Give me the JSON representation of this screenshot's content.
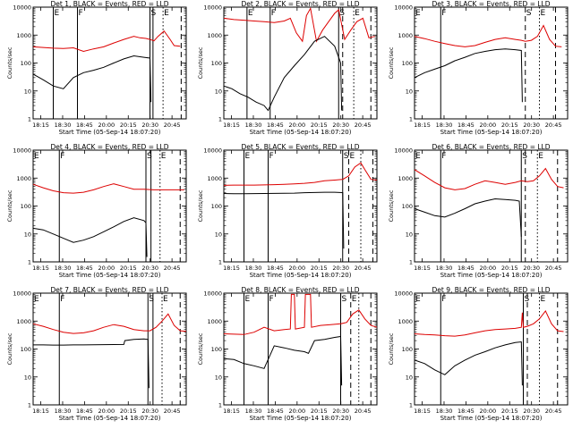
{
  "figure": {
    "xlabel": "Start Time (05-Sep-14 18:07:20)",
    "ylabel": "Counts/sec",
    "xticks": [
      "18:15",
      "18:30",
      "18:45",
      "20:00",
      "20:15",
      "20:30",
      "20:45"
    ],
    "yticks": [
      "1",
      "10",
      "100",
      "1000",
      "10000"
    ],
    "series_colors": {
      "events": "#000000",
      "lld": "#dd0000"
    }
  },
  "chart_data": [
    {
      "type": "line",
      "title": "Det 1, BLACK = Events, RED = LLD",
      "ylim": [
        1,
        10000
      ],
      "yscale": "log",
      "markers": [
        {
          "x": 1.0,
          "label": "E",
          "style": "solid"
        },
        {
          "x": 2.2,
          "label": "F",
          "style": "solid"
        },
        {
          "x": 5.8,
          "label": "S",
          "style": "solid"
        },
        {
          "x": 5.95,
          "label": "",
          "style": "solid"
        },
        {
          "x": 6.45,
          "label": "E",
          "style": "dotted"
        },
        {
          "x": 7.35,
          "label": "",
          "style": "dashed"
        }
      ],
      "series": [
        {
          "key": "lld",
          "x": [
            0,
            0.5,
            1,
            1.5,
            2,
            2.5,
            3,
            3.5,
            4,
            4.5,
            5,
            5.3,
            5.6,
            5.8,
            6.0,
            6.2,
            6.5,
            6.8,
            7.0,
            7.3
          ],
          "values": [
            380,
            360,
            340,
            330,
            350,
            260,
            320,
            380,
            520,
            700,
            900,
            800,
            760,
            700,
            620,
            900,
            1400,
            700,
            420,
            400
          ]
        },
        {
          "key": "events",
          "x": [
            0,
            0.5,
            1,
            1.5,
            2,
            2.5,
            3,
            3.5,
            4,
            4.5,
            5,
            5.5,
            5.8,
            5.85
          ],
          "values": [
            40,
            25,
            15,
            12,
            30,
            45,
            55,
            70,
            100,
            140,
            180,
            160,
            150,
            4
          ]
        }
      ]
    },
    {
      "type": "line",
      "title": "Det 2, BLACK = Events, RED = LLD",
      "ylim": [
        1,
        10000
      ],
      "yscale": "log",
      "markers": [
        {
          "x": 1.15,
          "label": "E",
          "style": "solid"
        },
        {
          "x": 2.3,
          "label": "F",
          "style": "solid"
        },
        {
          "x": 5.7,
          "label": "S",
          "style": "solid"
        },
        {
          "x": 5.9,
          "label": "",
          "style": "dashed"
        },
        {
          "x": 6.45,
          "label": "E",
          "style": "dotted"
        },
        {
          "x": 7.3,
          "label": "",
          "style": "dashed"
        }
      ],
      "series": [
        {
          "key": "lld",
          "x": [
            0,
            0.5,
            1,
            1.5,
            2,
            2.5,
            3,
            3.3,
            3.6,
            3.9,
            4.1,
            4.3,
            4.6,
            4.9,
            5.2,
            5.5,
            5.7,
            6.0,
            6.3,
            6.6,
            6.9,
            7.2,
            7.5
          ],
          "values": [
            4000,
            3600,
            3400,
            3200,
            3000,
            2800,
            3200,
            4000,
            1200,
            600,
            5000,
            9000,
            600,
            1500,
            3000,
            6000,
            8000,
            700,
            1500,
            3000,
            4000,
            800,
            900
          ]
        },
        {
          "key": "events",
          "x": [
            0,
            0.4,
            0.8,
            1.2,
            1.6,
            2.0,
            2.2,
            2.5,
            3.0,
            3.5,
            4.0,
            4.5,
            5.0,
            5.5,
            5.8,
            5.85
          ],
          "values": [
            15,
            12,
            8,
            6,
            4,
            3,
            2,
            6,
            30,
            80,
            200,
            600,
            900,
            400,
            100,
            2
          ]
        }
      ]
    },
    {
      "type": "line",
      "title": "Det 3, BLACK = Events, RED = LLD",
      "ylim": [
        1,
        10000
      ],
      "yscale": "log",
      "markers": [
        {
          "x": 0.0,
          "label": "E",
          "style": "solid"
        },
        {
          "x": 1.3,
          "label": "F",
          "style": "solid"
        },
        {
          "x": 5.5,
          "label": "S",
          "style": "dashed"
        },
        {
          "x": 6.2,
          "label": "E",
          "style": "dotted"
        },
        {
          "x": 7.0,
          "label": "",
          "style": "dashed"
        }
      ],
      "series": [
        {
          "key": "lld",
          "x": [
            0,
            0.5,
            1,
            1.5,
            2,
            2.5,
            3,
            3.5,
            4,
            4.5,
            5,
            5.3,
            5.5,
            5.8,
            6.1,
            6.4,
            6.7,
            7.0,
            7.3
          ],
          "values": [
            900,
            750,
            600,
            500,
            420,
            380,
            420,
            550,
            700,
            800,
            700,
            650,
            600,
            650,
            900,
            2200,
            700,
            400,
            380
          ]
        },
        {
          "key": "events",
          "x": [
            0,
            0.5,
            1,
            1.5,
            2,
            2.5,
            3,
            3.5,
            4,
            4.5,
            5,
            5.3,
            5.35
          ],
          "values": [
            30,
            45,
            60,
            80,
            120,
            160,
            220,
            260,
            300,
            320,
            300,
            280,
            4
          ]
        }
      ]
    },
    {
      "type": "line",
      "title": "Det 4, BLACK = Events, RED = LLD",
      "ylim": [
        1,
        10000
      ],
      "yscale": "log",
      "markers": [
        {
          "x": 0.0,
          "label": "E",
          "style": "solid"
        },
        {
          "x": 1.3,
          "label": "F",
          "style": "solid"
        },
        {
          "x": 5.6,
          "label": "S",
          "style": "solid"
        },
        {
          "x": 5.85,
          "label": "",
          "style": "solid"
        },
        {
          "x": 6.3,
          "label": "E",
          "style": "dotted"
        },
        {
          "x": 7.3,
          "label": "",
          "style": "dashed"
        }
      ],
      "series": [
        {
          "key": "lld",
          "x": [
            0,
            0.5,
            1,
            1.5,
            2,
            2.5,
            3,
            3.5,
            4,
            4.5,
            5,
            5.5,
            6.0,
            6.5,
            7.0,
            7.5
          ],
          "values": [
            600,
            450,
            350,
            300,
            290,
            310,
            380,
            500,
            620,
            500,
            400,
            400,
            380,
            380,
            380,
            380
          ]
        },
        {
          "key": "events",
          "x": [
            0,
            0.5,
            1,
            1.5,
            2,
            2.5,
            3,
            3.5,
            4,
            4.5,
            5,
            5.5,
            5.6,
            5.65
          ],
          "values": [
            16,
            14,
            10,
            7,
            5,
            6,
            8,
            12,
            18,
            28,
            38,
            30,
            25,
            1.5
          ]
        }
      ]
    },
    {
      "type": "line",
      "title": "Det 5, BLACK = Events, RED = LLD",
      "ylim": [
        1,
        10000
      ],
      "yscale": "log",
      "markers": [
        {
          "x": 1.0,
          "label": "E",
          "style": "solid"
        },
        {
          "x": 2.2,
          "label": "F",
          "style": "solid"
        },
        {
          "x": 5.9,
          "label": "S",
          "style": "solid"
        },
        {
          "x": 6.2,
          "label": "E",
          "style": "dashed"
        },
        {
          "x": 6.8,
          "label": "",
          "style": "dotted"
        },
        {
          "x": 7.4,
          "label": "",
          "style": "dashed"
        }
      ],
      "series": [
        {
          "key": "lld",
          "x": [
            0,
            0.5,
            1,
            1.5,
            2,
            2.5,
            3,
            3.5,
            4,
            4.5,
            5,
            5.5,
            5.9,
            6.2,
            6.5,
            6.8,
            7.0,
            7.3,
            7.6
          ],
          "values": [
            550,
            560,
            560,
            560,
            570,
            580,
            600,
            620,
            650,
            700,
            800,
            850,
            900,
            1200,
            2500,
            3500,
            2000,
            900,
            850
          ]
        },
        {
          "key": "events",
          "x": [
            0,
            0.5,
            1,
            1.5,
            2,
            2.5,
            3,
            3.5,
            4,
            4.5,
            5,
            5.5,
            5.9,
            5.95
          ],
          "values": [
            280,
            275,
            275,
            278,
            280,
            282,
            285,
            290,
            300,
            305,
            310,
            310,
            300,
            3
          ]
        }
      ]
    },
    {
      "type": "line",
      "title": "Det 6, BLACK = Events, RED = LLD",
      "ylim": [
        1,
        10000
      ],
      "yscale": "log",
      "markers": [
        {
          "x": 0.0,
          "label": "E",
          "style": "solid"
        },
        {
          "x": 1.3,
          "label": "F",
          "style": "solid"
        },
        {
          "x": 5.3,
          "label": "S",
          "style": "solid"
        },
        {
          "x": 5.5,
          "label": "",
          "style": "dashed"
        },
        {
          "x": 6.1,
          "label": "E",
          "style": "dotted"
        },
        {
          "x": 7.1,
          "label": "",
          "style": "dashed"
        }
      ],
      "series": [
        {
          "key": "lld",
          "x": [
            0,
            0.5,
            1,
            1.5,
            2,
            2.5,
            3,
            3.5,
            4,
            4.5,
            5,
            5.3,
            5.6,
            5.9,
            6.2,
            6.5,
            6.8,
            7.1,
            7.4
          ],
          "values": [
            2000,
            1200,
            700,
            450,
            380,
            420,
            600,
            800,
            700,
            600,
            700,
            800,
            750,
            800,
            1200,
            2200,
            900,
            500,
            450
          ]
        },
        {
          "key": "events",
          "x": [
            0,
            0.5,
            1,
            1.5,
            2,
            2.5,
            3,
            3.5,
            4,
            4.5,
            5,
            5.2,
            5.3
          ],
          "values": [
            80,
            60,
            45,
            40,
            55,
            80,
            120,
            150,
            180,
            170,
            160,
            150,
            8
          ]
        }
      ]
    },
    {
      "type": "line",
      "title": "Det 7, BLACK = Events, RED = LLD",
      "ylim": [
        1,
        10000
      ],
      "yscale": "log",
      "markers": [
        {
          "x": 0.0,
          "label": "E",
          "style": "solid"
        },
        {
          "x": 1.3,
          "label": "F",
          "style": "solid"
        },
        {
          "x": 5.7,
          "label": "S",
          "style": "solid"
        },
        {
          "x": 5.95,
          "label": "",
          "style": "solid"
        },
        {
          "x": 6.4,
          "label": "E",
          "style": "dotted"
        },
        {
          "x": 7.3,
          "label": "",
          "style": "dashed"
        }
      ],
      "series": [
        {
          "key": "lld",
          "x": [
            0,
            0.5,
            1,
            1.5,
            2,
            2.5,
            3,
            3.5,
            4,
            4.5,
            5,
            5.5,
            5.8,
            6.1,
            6.4,
            6.7,
            7.0,
            7.3,
            7.6
          ],
          "values": [
            800,
            650,
            500,
            400,
            360,
            380,
            450,
            600,
            750,
            650,
            500,
            450,
            450,
            600,
            1000,
            1800,
            700,
            450,
            430
          ]
        },
        {
          "key": "events",
          "x": [
            0,
            0.5,
            1,
            1.5,
            2,
            2.5,
            3,
            3.5,
            4,
            4.5,
            4.55,
            5,
            5.5,
            5.7,
            5.75
          ],
          "values": [
            140,
            140,
            138,
            138,
            140,
            140,
            142,
            144,
            145,
            146,
            200,
            220,
            230,
            220,
            4
          ]
        }
      ]
    },
    {
      "type": "line",
      "title": "Det 8, BLACK = Events, RED = LLD",
      "ylim": [
        1,
        10000
      ],
      "yscale": "log",
      "markers": [
        {
          "x": 1.0,
          "label": "E",
          "style": "solid"
        },
        {
          "x": 2.2,
          "label": "F",
          "style": "solid"
        },
        {
          "x": 5.8,
          "label": "S",
          "style": "solid"
        },
        {
          "x": 6.3,
          "label": "E",
          "style": "dashed"
        },
        {
          "x": 6.7,
          "label": "",
          "style": "dotted"
        },
        {
          "x": 7.3,
          "label": "",
          "style": "dashed"
        }
      ],
      "series": [
        {
          "key": "lld",
          "x": [
            0,
            0.5,
            1,
            1.5,
            2,
            2.5,
            3,
            3.3,
            3.35,
            3.5,
            3.55,
            4.0,
            4.05,
            4.3,
            4.35,
            4.8,
            5.3,
            5.8,
            6.1,
            6.4,
            6.7,
            7.0,
            7.3,
            7.6
          ],
          "values": [
            350,
            340,
            330,
            400,
            600,
            450,
            500,
            520,
            9000,
            9000,
            520,
            600,
            9000,
            9000,
            600,
            700,
            750,
            800,
            900,
            1800,
            2500,
            1200,
            700,
            600
          ]
        },
        {
          "key": "events",
          "x": [
            0,
            0.5,
            1,
            1.5,
            2,
            2.5,
            3,
            3.5,
            4,
            4.2,
            4.5,
            5,
            5.5,
            5.8,
            5.85
          ],
          "values": [
            45,
            42,
            30,
            25,
            20,
            130,
            110,
            90,
            80,
            70,
            200,
            220,
            260,
            280,
            5
          ]
        }
      ]
    },
    {
      "type": "line",
      "title": "Det 9, BLACK = Events, RED = LLD",
      "ylim": [
        1,
        10000
      ],
      "yscale": "log",
      "markers": [
        {
          "x": 0.0,
          "label": "E",
          "style": "solid"
        },
        {
          "x": 1.3,
          "label": "F",
          "style": "solid"
        },
        {
          "x": 5.4,
          "label": "S",
          "style": "solid"
        },
        {
          "x": 5.6,
          "label": "",
          "style": "dashed"
        },
        {
          "x": 6.2,
          "label": "E",
          "style": "dotted"
        },
        {
          "x": 7.1,
          "label": "",
          "style": "dashed"
        }
      ],
      "series": [
        {
          "key": "lld",
          "x": [
            0,
            0.5,
            1,
            1.5,
            2,
            2.5,
            3,
            3.5,
            4,
            4.5,
            5,
            5.3,
            5.35,
            5.4,
            5.6,
            5.9,
            6.2,
            6.5,
            6.8,
            7.1,
            7.4
          ],
          "values": [
            350,
            330,
            320,
            300,
            290,
            320,
            380,
            450,
            500,
            520,
            550,
            600,
            2000,
            600,
            650,
            800,
            1200,
            2300,
            800,
            450,
            420
          ]
        },
        {
          "key": "events",
          "x": [
            0,
            0.5,
            1,
            1.5,
            2,
            2.5,
            3,
            3.5,
            4,
            4.5,
            5,
            5.3,
            5.35
          ],
          "values": [
            40,
            30,
            18,
            12,
            25,
            40,
            60,
            80,
            110,
            140,
            170,
            180,
            5
          ]
        }
      ]
    }
  ]
}
